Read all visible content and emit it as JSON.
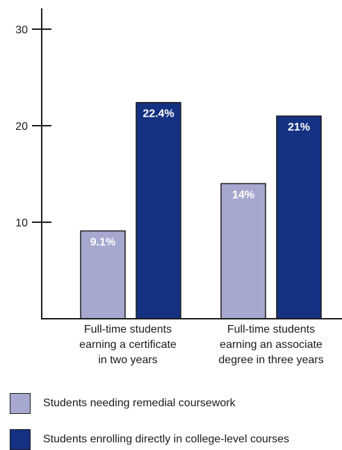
{
  "chart_data": {
    "type": "bar",
    "categories": [
      "Full-time students earning a certificate in two years",
      "Full-time students earning an associate degree in three years"
    ],
    "category_lines": [
      [
        "Full-time students",
        "earning a certificate",
        "in two years"
      ],
      [
        "Full-time students",
        "earning an associate",
        "degree in three years"
      ]
    ],
    "series": [
      {
        "name": "Students needing remedial coursework",
        "values": [
          9.1,
          14
        ],
        "labels": [
          "9.1%",
          "14%"
        ],
        "color": "#a6a8cf"
      },
      {
        "name": "Students enrolling directly in college-level courses",
        "values": [
          22.4,
          21
        ],
        "labels": [
          "22.4%",
          "21%"
        ],
        "color": "#143281"
      }
    ],
    "yticks": [
      "10",
      "20",
      "30"
    ],
    "ylim": [
      0,
      33
    ],
    "grid": false,
    "legend_position": "bottom"
  }
}
